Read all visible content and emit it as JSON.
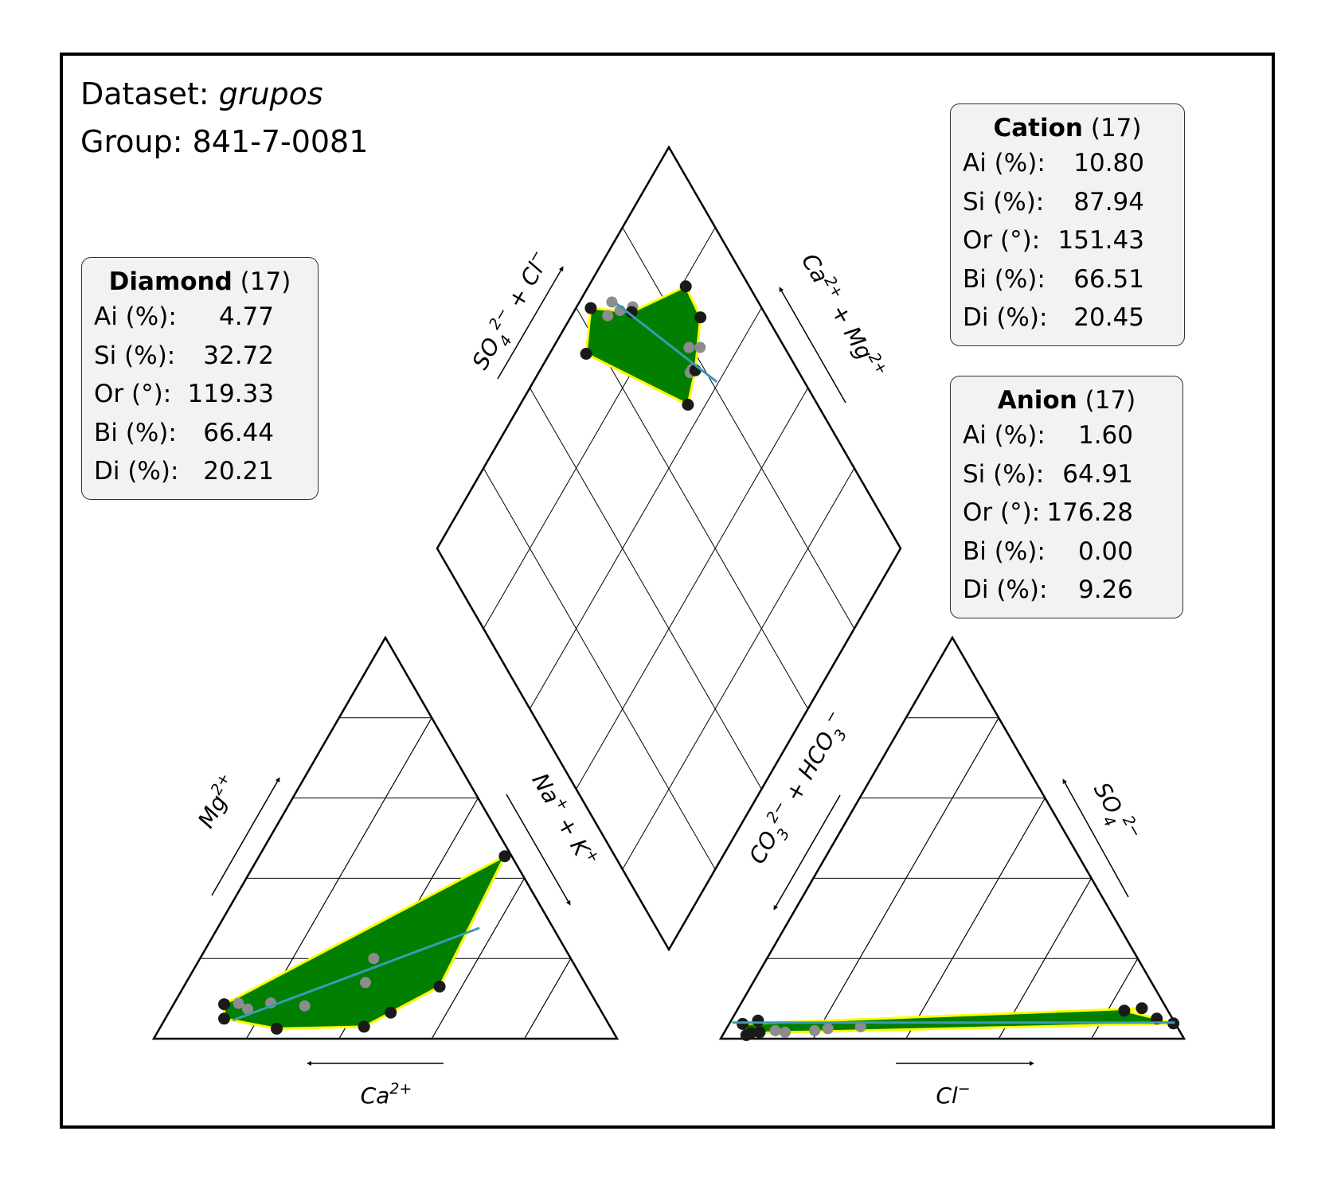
{
  "header": {
    "dataset_label": "Dataset: ",
    "dataset_name": "grupos",
    "group_label": "Group: 841-7-0081"
  },
  "boxes": {
    "diamond": {
      "title": "Diamond",
      "count": "(17)",
      "rows": [
        {
          "label": "Ai (%):",
          "value": "4.77"
        },
        {
          "label": "Si (%):",
          "value": "32.72"
        },
        {
          "label": "Or (°):",
          "value": "119.33"
        },
        {
          "label": "Bi (%):",
          "value": "66.44"
        },
        {
          "label": "Di (%):",
          "value": "20.21"
        }
      ]
    },
    "cation": {
      "title": "Cation",
      "count": "(17)",
      "rows": [
        {
          "label": "Ai (%):",
          "value": "10.80"
        },
        {
          "label": "Si (%):",
          "value": "87.94"
        },
        {
          "label": "Or (°):",
          "value": "151.43"
        },
        {
          "label": "Bi (%):",
          "value": "66.51"
        },
        {
          "label": "Di (%):",
          "value": "20.45"
        }
      ]
    },
    "anion": {
      "title": "Anion",
      "count": "(17)",
      "rows": [
        {
          "label": "Ai (%):",
          "value": "1.60"
        },
        {
          "label": "Si (%):",
          "value": "64.91"
        },
        {
          "label": "Or (°):",
          "value": "176.28"
        },
        {
          "label": "Bi (%):",
          "value": "0.00"
        },
        {
          "label": "Di (%):",
          "value": "9.26"
        }
      ]
    }
  },
  "chart_data": {
    "type": "scatter",
    "subtype": "piper-diagram",
    "grid_step_percent": 20,
    "colors": {
      "hull_fill": "#007f00",
      "hull_edge": "#ffff00",
      "trend_line": "#3c9ab5",
      "vertex_marker": "#1a1a1a",
      "interior_marker": "#8c8c8c",
      "frame": "#000000",
      "box_background": "#f2f2f2"
    },
    "axis_labels": {
      "cation_left": "Mg2+",
      "cation_right": "Na+ + K+",
      "cation_bottom": "Ca2+",
      "anion_left": "CO32− + HCO3−",
      "anion_right": "SO42−",
      "anion_bottom": "Cl−",
      "diamond_left": "SO42− + Cl−",
      "diamond_right": "Ca2+ + Mg2+"
    },
    "cation_triangle": {
      "hull": [
        [
          45.5,
          53.0
        ],
        [
          13.0,
          55.2
        ],
        [
          6.5,
          47.9
        ],
        [
          3.0,
          43.9
        ],
        [
          2.5,
          25.3
        ],
        [
          5.0,
          12.7
        ],
        [
          8.6,
          10.9
        ]
      ],
      "vertex_points": [
        [
          45.5,
          53.0
        ],
        [
          13.0,
          55.2
        ],
        [
          6.5,
          47.9
        ],
        [
          3.0,
          43.9
        ],
        [
          2.5,
          25.3
        ],
        [
          5.0,
          12.7
        ],
        [
          8.6,
          10.9
        ]
      ],
      "interior_points": [
        [
          20.0,
          37.5
        ],
        [
          14.0,
          38.7
        ],
        [
          8.2,
          28.5
        ],
        [
          8.9,
          20.8
        ],
        [
          7.4,
          16.6
        ],
        [
          8.8,
          13.9
        ]
      ],
      "trend_line": [
        [
          4.6,
          14.8
        ],
        [
          27.6,
          56.5
        ]
      ]
    },
    "anion_triangle": {
      "hull": [
        [
          3.7,
          2.9
        ],
        [
          1.4,
          5.8
        ],
        [
          3.8,
          95.8
        ],
        [
          5.0,
          91.6
        ],
        [
          7.0,
          83.6
        ],
        [
          7.6,
          87.1
        ]
      ],
      "vertex_points": [
        [
          3.7,
          2.9
        ],
        [
          1.4,
          5.8
        ],
        [
          3.8,
          95.8
        ],
        [
          5.0,
          91.6
        ],
        [
          7.0,
          83.6
        ],
        [
          7.6,
          87.1
        ],
        [
          0.9,
          5.1
        ],
        [
          1.6,
          7.6
        ],
        [
          4.5,
          5.8
        ]
      ],
      "interior_points": [
        [
          2.0,
          10.8
        ],
        [
          1.6,
          13.1
        ],
        [
          2.0,
          19.3
        ],
        [
          2.5,
          21.9
        ],
        [
          3.0,
          28.7
        ]
      ],
      "trend_line": [
        [
          4.0,
          0.5
        ],
        [
          4.0,
          96.0
        ]
      ]
    },
    "diamond": {
      "hull": [
        [
          96.8,
          63.1
        ],
        [
          87.5,
          71.4
        ],
        [
          79.0,
          86.3
        ],
        [
          72.0,
          85.6
        ],
        [
          66.5,
          77.9
        ],
        [
          63.8,
          72.0
        ],
        [
          92.1,
          56.4
        ]
      ],
      "vertex_points": [
        [
          96.8,
          63.1
        ],
        [
          87.5,
          71.4
        ],
        [
          79.0,
          86.3
        ],
        [
          72.0,
          85.6
        ],
        [
          66.5,
          77.9
        ],
        [
          63.8,
          72.0
        ],
        [
          92.1,
          56.4
        ]
      ],
      "interior_points": [
        [
          92.2,
          65.8
        ],
        [
          93.0,
          68.4
        ],
        [
          90.2,
          69.1
        ],
        [
          87.9,
          72.3
        ],
        [
          70.7,
          79.4
        ],
        [
          68.3,
          81.8
        ],
        [
          67.3,
          76.5
        ],
        [
          67.3,
          77.3
        ]
      ],
      "trend_line": [
        [
          91.8,
          69.2
        ],
        [
          60.4,
          81.1
        ]
      ]
    }
  }
}
